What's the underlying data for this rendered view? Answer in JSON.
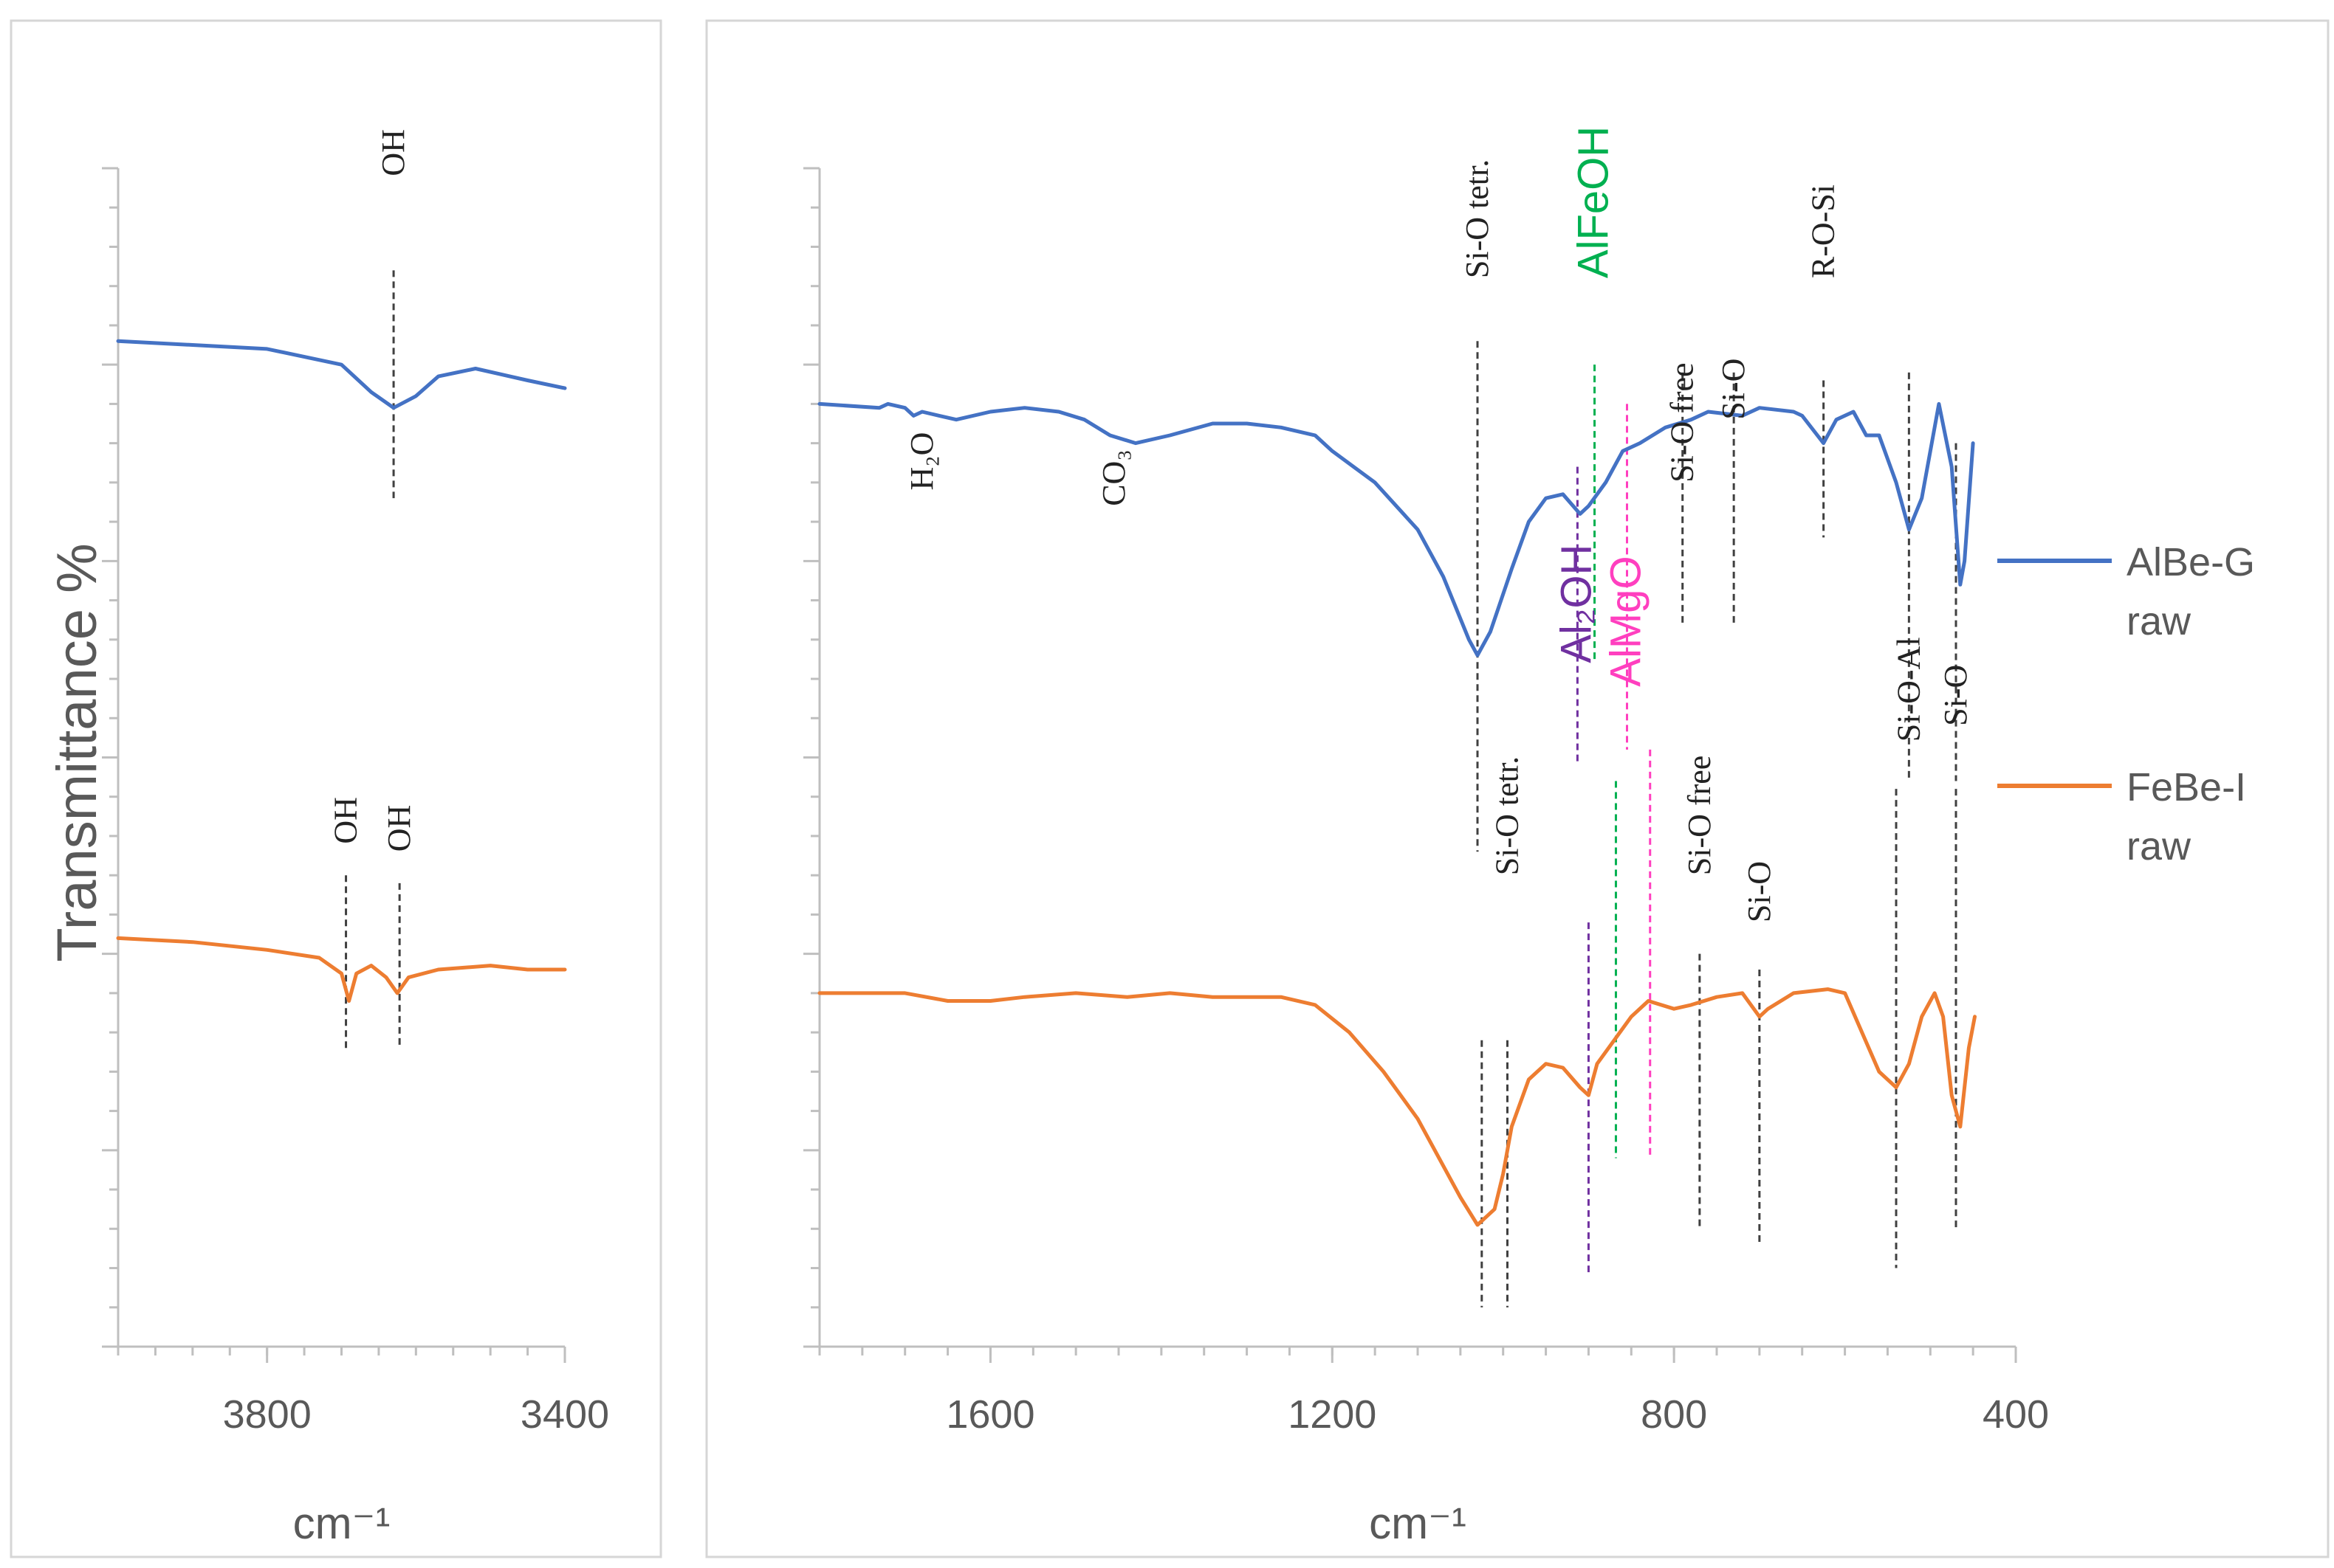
{
  "chart_data": {
    "type": "line",
    "ylabel": "Transmittance %",
    "colors": {
      "AlBe-G raw": "#4472C4",
      "FeBe-I raw": "#ED7D31",
      "Al2OH": "#7030A0",
      "AlFeOH": "#00B050",
      "AlMgO": "#FF3FBF",
      "ref": "#404040"
    },
    "legend": [
      {
        "line1": "AlBe-G",
        "line2": "raw",
        "series": "AlBe-G raw"
      },
      {
        "line1": "FeBe-I",
        "line2": "raw",
        "series": "FeBe-I raw"
      }
    ],
    "panels": [
      {
        "id": "left",
        "xlabel": "cm⁻¹",
        "xlim": [
          4000,
          3400
        ],
        "xticks": [
          3800,
          3400
        ],
        "xtick_labels": [
          "3800",
          "3400"
        ],
        "minor_step": 50,
        "series": [
          {
            "name": "AlBe-G raw",
            "y_base": 12.8,
            "points": [
              [
                4000,
                12.8
              ],
              [
                3900,
                12.75
              ],
              [
                3800,
                12.7
              ],
              [
                3700,
                12.5
              ],
              [
                3660,
                12.15
              ],
              [
                3630,
                11.95
              ],
              [
                3600,
                12.1
              ],
              [
                3570,
                12.35
              ],
              [
                3520,
                12.45
              ],
              [
                3450,
                12.3
              ],
              [
                3400,
                12.2
              ]
            ]
          },
          {
            "name": "FeBe-I raw",
            "y_base": 5.2,
            "points": [
              [
                4000,
                5.2
              ],
              [
                3900,
                5.15
              ],
              [
                3800,
                5.05
              ],
              [
                3730,
                4.95
              ],
              [
                3700,
                4.75
              ],
              [
                3690,
                4.4
              ],
              [
                3680,
                4.75
              ],
              [
                3660,
                4.85
              ],
              [
                3640,
                4.7
              ],
              [
                3625,
                4.5
              ],
              [
                3610,
                4.7
              ],
              [
                3570,
                4.8
              ],
              [
                3500,
                4.85
              ],
              [
                3450,
                4.8
              ],
              [
                3400,
                4.8
              ]
            ]
          }
        ],
        "markers": [
          {
            "label": "OH",
            "x": 3630,
            "y_top": 13.7,
            "y_bot": 10.8,
            "color": "ref",
            "label_y": 14.9
          },
          {
            "label": "OH",
            "x": 3694,
            "y_top": 6.0,
            "y_bot": 3.8,
            "color": "ref",
            "label_y": 6.4
          },
          {
            "label": "OH",
            "x": 3622,
            "y_top": 5.9,
            "y_bot": 3.8,
            "color": "ref",
            "label_y": 6.3
          }
        ]
      },
      {
        "id": "right",
        "xlabel": "cm⁻¹",
        "xlim": [
          1800,
          400
        ],
        "xticks": [
          1600,
          1200,
          800,
          400
        ],
        "xtick_labels": [
          "1600",
          "1200",
          "800",
          "400"
        ],
        "minor_step": 50,
        "series": [
          {
            "name": "AlBe-G raw",
            "points": [
              [
                1800,
                12.0
              ],
              [
                1730,
                11.95
              ],
              [
                1720,
                12.0
              ],
              [
                1700,
                11.95
              ],
              [
                1690,
                11.85
              ],
              [
                1680,
                11.9
              ],
              [
                1660,
                11.85
              ],
              [
                1640,
                11.8
              ],
              [
                1600,
                11.9
              ],
              [
                1560,
                11.95
              ],
              [
                1520,
                11.9
              ],
              [
                1490,
                11.8
              ],
              [
                1460,
                11.6
              ],
              [
                1430,
                11.5
              ],
              [
                1390,
                11.6
              ],
              [
                1340,
                11.75
              ],
              [
                1300,
                11.75
              ],
              [
                1260,
                11.7
              ],
              [
                1220,
                11.6
              ],
              [
                1200,
                11.4
              ],
              [
                1150,
                11.0
              ],
              [
                1100,
                10.4
              ],
              [
                1070,
                9.8
              ],
              [
                1040,
                9.0
              ],
              [
                1030,
                8.8
              ],
              [
                1015,
                9.1
              ],
              [
                990,
                9.9
              ],
              [
                970,
                10.5
              ],
              [
                950,
                10.8
              ],
              [
                930,
                10.85
              ],
              [
                910,
                10.6
              ],
              [
                900,
                10.7
              ],
              [
                880,
                11.0
              ],
              [
                860,
                11.4
              ],
              [
                840,
                11.5
              ],
              [
                810,
                11.7
              ],
              [
                780,
                11.8
              ],
              [
                760,
                11.9
              ],
              [
                720,
                11.85
              ],
              [
                700,
                11.95
              ],
              [
                660,
                11.9
              ],
              [
                650,
                11.85
              ],
              [
                625,
                11.5
              ],
              [
                610,
                11.8
              ],
              [
                590,
                11.9
              ],
              [
                575,
                11.6
              ],
              [
                560,
                11.6
              ],
              [
                540,
                11.0
              ],
              [
                525,
                10.4
              ],
              [
                510,
                10.8
              ],
              [
                490,
                12.0
              ],
              [
                475,
                11.2
              ],
              [
                465,
                9.7
              ],
              [
                460,
                10.0
              ],
              [
                450,
                11.5
              ]
            ]
          },
          {
            "name": "FeBe-I raw",
            "points": [
              [
                1800,
                4.5
              ],
              [
                1750,
                4.5
              ],
              [
                1700,
                4.5
              ],
              [
                1650,
                4.4
              ],
              [
                1600,
                4.4
              ],
              [
                1560,
                4.45
              ],
              [
                1500,
                4.5
              ],
              [
                1440,
                4.45
              ],
              [
                1390,
                4.5
              ],
              [
                1340,
                4.45
              ],
              [
                1300,
                4.45
              ],
              [
                1260,
                4.45
              ],
              [
                1220,
                4.35
              ],
              [
                1180,
                4.0
              ],
              [
                1140,
                3.5
              ],
              [
                1100,
                2.9
              ],
              [
                1070,
                2.3
              ],
              [
                1050,
                1.9
              ],
              [
                1030,
                1.55
              ],
              [
                1020,
                1.65
              ],
              [
                1010,
                1.75
              ],
              [
                1000,
                2.2
              ],
              [
                990,
                2.8
              ],
              [
                970,
                3.4
              ],
              [
                950,
                3.6
              ],
              [
                930,
                3.55
              ],
              [
                910,
                3.3
              ],
              [
                900,
                3.2
              ],
              [
                890,
                3.6
              ],
              [
                870,
                3.9
              ],
              [
                850,
                4.2
              ],
              [
                830,
                4.4
              ],
              [
                800,
                4.3
              ],
              [
                780,
                4.35
              ],
              [
                750,
                4.45
              ],
              [
                720,
                4.5
              ],
              [
                700,
                4.2
              ],
              [
                690,
                4.3
              ],
              [
                660,
                4.5
              ],
              [
                620,
                4.55
              ],
              [
                600,
                4.5
              ],
              [
                580,
                4.0
              ],
              [
                560,
                3.5
              ],
              [
                540,
                3.3
              ],
              [
                525,
                3.6
              ],
              [
                510,
                4.2
              ],
              [
                495,
                4.5
              ],
              [
                485,
                4.2
              ],
              [
                475,
                3.2
              ],
              [
                465,
                2.8
              ],
              [
                455,
                3.8
              ],
              [
                448,
                4.2
              ]
            ]
          }
        ],
        "markers": [
          {
            "label": "H₂O",
            "x": 1680,
            "y_top": null,
            "y_bot": null,
            "color": "ref",
            "label_y": 10.9
          },
          {
            "label": "CO₃",
            "x": 1455,
            "y_top": null,
            "y_bot": null,
            "color": "ref",
            "label_y": 10.7
          },
          {
            "label": "Si-O tetr.",
            "x": 1030,
            "y_top": 12.8,
            "y_bot": 6.3,
            "color": "ref",
            "label_y": 13.6
          },
          {
            "label": "AlFeOH",
            "x": 893,
            "y_top": 12.5,
            "y_bot": 8.7,
            "color": "AlFeOH",
            "label_y": 13.6,
            "big": true
          },
          {
            "label": "Si-O free",
            "x": 790,
            "y_top": 12.4,
            "y_bot": 9.2,
            "color": "ref",
            "label_y": 11.0
          },
          {
            "label": "Si-O",
            "x": 730,
            "y_top": 12.4,
            "y_bot": 9.2,
            "color": "ref",
            "label_y": 11.8
          },
          {
            "label": "R-O-Si",
            "x": 625,
            "y_top": 12.3,
            "y_bot": 10.3,
            "color": "ref",
            "label_y": 13.6
          },
          {
            "label": "Si-O-Al",
            "x": 525,
            "y_top": 12.4,
            "y_bot": 7.2,
            "color": "ref",
            "label_y": 7.7
          },
          {
            "label": "Si-O",
            "x": 470,
            "y_top": 11.5,
            "y_bot": 7.2,
            "color": "ref",
            "label_y": 7.9
          },
          {
            "label": "Al₂OH",
            "x": 913,
            "y_top": 11.2,
            "y_bot": 7.4,
            "color": "Al2OH",
            "label_y": 8.7,
            "big": true
          },
          {
            "label": "AlMgO",
            "x": 855,
            "y_top": 12.0,
            "y_bot": 7.6,
            "color": "AlMgO",
            "label_y": 8.4,
            "big": true
          },
          {
            "label": "Si-O tetr.",
            "x": 995,
            "y_top": 3.9,
            "y_bot": 0.5,
            "color": "ref",
            "label_y": 6.0
          },
          {
            "label": "Al₂OH",
            "x": 900,
            "y_top": 5.4,
            "y_bot": 0.9,
            "color": "Al2OH",
            "label_y": null
          },
          {
            "label": "AlFeOH",
            "x": 868,
            "y_top": 7.2,
            "y_bot": 2.4,
            "color": "AlFeOH",
            "label_y": null
          },
          {
            "label": "AlMgO",
            "x": 828,
            "y_top": 7.6,
            "y_bot": 2.4,
            "color": "AlMgO",
            "label_y": null
          },
          {
            "label": "Si-O free",
            "x": 770,
            "y_top": 5.0,
            "y_bot": 1.5,
            "color": "ref",
            "label_y": 6.0
          },
          {
            "label": "Si-O",
            "x": 700,
            "y_top": 4.8,
            "y_bot": 1.3,
            "color": "ref",
            "label_y": 5.4
          },
          {
            "label": "Si-O-Al",
            "x": 540,
            "y_top": 7.1,
            "y_bot": 1.0,
            "color": "ref",
            "label_y": null
          },
          {
            "label": "Si-O",
            "x": 470,
            "y_top": 7.1,
            "y_bot": 1.5,
            "color": "ref",
            "label_y": null
          },
          {
            "label": "Si-O tetr.",
            "x": 1025,
            "y_top": 3.9,
            "y_bot": 0.5,
            "color": "ref",
            "label_y": null
          }
        ]
      }
    ],
    "ylim": [
      0,
      15
    ]
  }
}
